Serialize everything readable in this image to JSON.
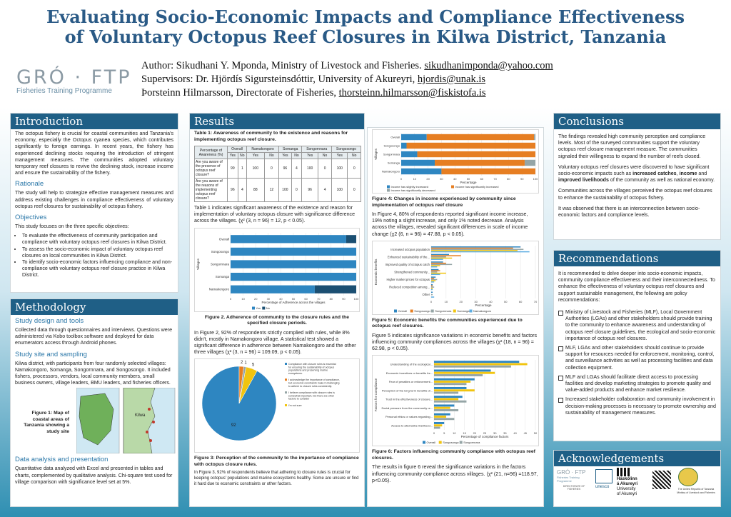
{
  "title_line1": "Evaluating Socio-Economic Impacts and Compliance Effectiveness",
  "title_line2": "of Voluntary Octopus Reef Closures in Kilwa District, Tanzania",
  "author_prefix": "Author: Sikudhani Y. Mponda, Ministry of Livestock and Fisheries. ",
  "author_email": "sikudhanimponda@yahoo.com",
  "sup1_prefix": "Supervisors: Dr. Hjördís Sigursteinsdóttir, University of Akureyri, ",
  "sup1_email": "hjordis@unak.is",
  "sup2_prefix": "Þorsteinn Hilmarsson, Directorate of Fisheries, ",
  "sup2_email": "thorsteinn.hilmarsson@fiskistofa.is",
  "logo_text": "GRÓ · FTP",
  "logo_sub": "Fisheries Training Programme",
  "intro": {
    "header": "Introduction",
    "body": "The octopus fishery is crucial for coastal communities and Tanzania's economy, especially the Octopus cyanea species, which contributes significantly to foreign earnings. In recent years, the fishery has experienced declining stocks requiring the introduction of stringent management measures. The communities adopted voluntary temporary reef closures to revive the declining stock, increase income and ensure the sustainability of the fishery.",
    "rationale_h": "Rationale",
    "rationale": "The study will help to strategize effective management measures and address existing challenges in compliance effectiveness of voluntary octopus reef closures for sustainability of octopus fishery.",
    "objectives_h": "Objectives",
    "objectives_lead": "This study focuses on the three specific objectives:",
    "objectives": [
      "To evaluate the effectiveness of community participation and compliance with voluntary octopus reef closures in Kilwa District.",
      "To assess the socio-economic impact of voluntary octopus reef closures on local communities in Kilwa District.",
      "To identify socio-economic factors influencing compliance and non-compliance with voluntary octopus reef closure practice in Kilwa District."
    ]
  },
  "method": {
    "header": "Methodology",
    "design_h": "Study design and tools",
    "design": "Collected data through questionnaires and interviews. Questions were administered via Kobo toolbox software and deployed for data enumerators access through Android phones.",
    "site_h": "Study site and sampling",
    "site": "Kilwa district, with participants from four randomly selected villages: Namakongoro, Somanga, Songornnara, and Songosongo. It included fishers, processors, vendors, local community members, small business owners, village leaders, BMU leaders, and fisheries officers.",
    "fig1_caption": "Figure 1: Map of coastal areas of Tanzania showing a study site",
    "map_label": "Kilwa",
    "analysis_h": "Data analysis and presentation",
    "analysis": "Quantitative data analyzed with Excel and presented in tables and charts, complemented by qualitative analysis. Chi-square test used for village comparison with significance level set at 5%."
  },
  "results": {
    "header": "Results",
    "table1_caption": "Table 1: Awareness of community to the existence and reasons for implementing octopus reef closure.",
    "table1_headers": [
      "Percentage of Awareness (%)",
      "Overall",
      "Namakongoro",
      "Somanga",
      "Songornnara",
      "Songosongo"
    ],
    "table1_sub": [
      "Yes",
      "No",
      "Yes",
      "No",
      "Yes",
      "No",
      "Yes",
      "No",
      "Yes",
      "No"
    ],
    "table1_rows": [
      {
        "label": "Are you aware of the presence of octopus reef closure?",
        "cells": [
          "99",
          "1",
          "100",
          "0",
          "96",
          "4",
          "100",
          "0",
          "100",
          "0"
        ]
      },
      {
        "label": "Are you aware of the reasons of implementing octopus reef closure?",
        "cells": [
          "96",
          "4",
          "88",
          "12",
          "100",
          "0",
          "96",
          "4",
          "100",
          "0"
        ]
      }
    ],
    "table1_text": "Table 1 indicates significant awareness of the existence and reason for implementation of voluntary octopus closure with significance difference across the villages. (χ² (3, n = 96) = 12, p < 0.05).",
    "fig2_caption": "Figure 2. Adherence of community to the closure rules and the specified closure periods.",
    "fig2_text": "In Figure 2, 92% of respondents strictly complied with rules, while 8% didn't, mostly in Namakongoro village. A statistical test showed a significant difference in adherence between Namakongoro and the other three villages (χ² (3, n = 96) = 109.09, p < 0.05).",
    "fig3_caption": "Figure 3: Perception of the community to the importance of compliance with octopus closure rules.",
    "fig3_text": "In Figure 3, 92% of respondents believe that adhering to closure rules is crucial for keeping octopus' populations and marine ecosystems healthy. Some are unsure or find it hard due to economic constraints or other factors.",
    "fig4_caption": "Figure 4: Changes in income experienced by community since implementation of octopus reef closure",
    "fig4_text": "In Figure 4, 80% of respondents reported significant income increase, 19% noting a slight increase, and only 1% noted decrease. Analysis across the villages, revealed significant differences in scale of income change (χ2 (6, n = 96) = 47.88, p < 0.05).",
    "fig5_caption": "Figure 5: Economic benefits the communities experienced due to octopus reef closures.",
    "fig5_text": "Figure 5 indicates significance variations in economic benefits and factors influencing community compliances across the villages (χ² (18, n = 96) = 62.98, p < 0.05).",
    "fig6_caption": "Figure 6: Factors influencing community compliance with octopus reef closures.",
    "fig6_text": "The results in figure 6 reveal the significance variations in the factors influencing community compliance across villages. (χ² (21, n=96) =118.97, p<0.05)."
  },
  "conclusions": {
    "header": "Conclusions",
    "p1": "The findings revealed high community perception and compliance levels. Most of the surveyed communities support the voluntary octopus reef closure management measure. The communities signaled their willingness to expand the number of reefs closed.",
    "p2a": "Voluntary octopus reef closures were discovered to have significant socio-economic impacts such as ",
    "p2b": "increased catches",
    "p2c": ", ",
    "p2d": "income",
    "p2e": " and ",
    "p2f": "improved livelihoods",
    "p2g": " of the community as well as national economy.",
    "p3": "Communities across the villages perceived the octopus reef closures to enhance the sustainability of octopus fishery.",
    "p4": "It was observed that there is an interconnection between socio-economic factors and compliance levels."
  },
  "recommendations": {
    "header": "Recommendations",
    "lead": "It is recommended to delve deeper into socio-economic impacts, community compliance effectiveness and their interconnectedness. To enhance the effectiveness of voluntary octopus reef closures and support sustainable management, the following are policy recommendations:",
    "items": [
      "Ministry of Livestock and Fisheries (MLF), Local Government Authorities (LGAs) and other stakeholders should provide training to the community to enhance awareness and understanding of octopus reef closure guidelines, the ecological and socio-economic importance of octopus reef closures.",
      "MLF, LGAs and other stakeholders should continue to provide support for resources needed for enforcement, monitoring, control, and surveillance activities as well as processing facilities and data collection equipment.",
      "MLF and LGAs should facilitate direct access to processing facilities and develop marketing strategies to promote quality and value-added products and enhance market resilience.",
      "Increased stakeholder collaboration and community involvement in decision-making processes is necessary to promote ownership and sustainability of management measures."
    ]
  },
  "ack": {
    "header": "Acknowledgements",
    "logo1": "GRÓ · FTP",
    "logo1_sub": "Fisheries Training Programme",
    "logo2": "unesco",
    "logo3a": "Háskólinn",
    "logo3b": "á Akureyri",
    "logo3c": "University",
    "logo3d": "of Akureyri",
    "logo4": "DIRECTORATE OF FISHERIES",
    "logo5": "The United Republic of Tanzania Ministry of Livestock and Fisheries"
  },
  "chart_data": [
    {
      "type": "bar",
      "name": "fig2",
      "orientation": "horizontal",
      "stacked": true,
      "categories": [
        "Overall",
        "Songosongo",
        "Songornnara",
        "Somanga",
        "Namakongoro"
      ],
      "series": [
        {
          "name": "Yes",
          "values": [
            92,
            100,
            100,
            100,
            67
          ],
          "color": "#2e86c1"
        },
        {
          "name": "No",
          "values": [
            8,
            0,
            0,
            0,
            33
          ],
          "color": "#1b4f72"
        }
      ],
      "xlabel": "Percentage of Adherence across the villages",
      "ylabel": "Villages",
      "xlim": [
        0,
        100
      ],
      "xticks": [
        0,
        10,
        20,
        30,
        40,
        50,
        60,
        70,
        80,
        90,
        100
      ],
      "legend": "bottom"
    },
    {
      "type": "pie",
      "name": "fig3",
      "slices": [
        {
          "label": "Compliance with closure rules is essential for ensuring the sustainability of octopus populations and preserving marine ecosystems.",
          "value": 92,
          "color": "#2e86c1"
        },
        {
          "label": "I acknowledge the importance of compliance, but economic constraints make it challenging to adhere to closure rules consistently.",
          "value": 2,
          "color": "#e67e22"
        },
        {
          "label": "I believe compliance with closure rules is somewhat important, but there are other factors to consider",
          "value": 1,
          "color": "#95a5a6"
        },
        {
          "label": "I'm not sure",
          "value": 5,
          "color": "#f1c40f"
        }
      ],
      "data_labels": [
        "92",
        "2",
        "1",
        "5"
      ],
      "legend": "right"
    },
    {
      "type": "bar",
      "name": "fig4",
      "orientation": "horizontal",
      "stacked": true,
      "categories": [
        "Overall",
        "Songosongo",
        "Songornnara",
        "Somanga",
        "Namakongoro"
      ],
      "series": [
        {
          "name": "Income has slightly increased",
          "values": [
            19,
            4,
            12,
            25,
            30
          ],
          "color": "#2e86c1"
        },
        {
          "name": "Income has significantly increased",
          "values": [
            80,
            96,
            88,
            67,
            70
          ],
          "color": "#e67e22"
        },
        {
          "name": "Income has significantly decreased",
          "values": [
            1,
            0,
            0,
            8,
            0
          ],
          "color": "#95a5a6"
        }
      ],
      "xlabel": "Percentage",
      "ylabel": "Villages",
      "xlim": [
        0,
        100
      ],
      "xticks": [
        0,
        10,
        20,
        30,
        40,
        50,
        60,
        70,
        80,
        90,
        100
      ],
      "legend": "bottom"
    },
    {
      "type": "bar",
      "name": "fig5",
      "orientation": "horizontal",
      "categories": [
        "Increased octopus population",
        "Enhanced sustainability of the...",
        "Improved quality of octopus catch",
        "Strengthened community...",
        "Higher market prices for octopus",
        "Reduced competition among...",
        "Other"
      ],
      "series": [
        {
          "name": "Overall",
          "values": [
            60,
            12,
            8,
            5,
            3,
            1,
            1
          ],
          "color": "#2e86c1"
        },
        {
          "name": "Songosongo",
          "values": [
            55,
            20,
            10,
            6,
            2,
            1,
            0
          ],
          "color": "#e67e22"
        },
        {
          "name": "Songornnara",
          "values": [
            62,
            10,
            14,
            4,
            4,
            2,
            1
          ],
          "color": "#95a5a6"
        },
        {
          "name": "Somanga",
          "values": [
            58,
            14,
            6,
            10,
            3,
            1,
            0
          ],
          "color": "#f1c40f"
        },
        {
          "name": "Namakongoro",
          "values": [
            66,
            8,
            4,
            6,
            2,
            1,
            2
          ],
          "color": "#5dade2"
        }
      ],
      "xlabel": "Percentage",
      "ylabel": "Economic benefits",
      "xlim": [
        0,
        70
      ],
      "xticks": [
        0,
        10,
        20,
        30,
        40,
        50,
        60,
        70
      ],
      "legend": "bottom"
    },
    {
      "type": "bar",
      "name": "fig6",
      "orientation": "horizontal",
      "categories": [
        "Understanding of the ecological...",
        "Economic incentives or benefits for...",
        "Fear of penalties or enforcement...",
        "Perception of the long-term benefits of...",
        "Trust in the effectiveness of closure...",
        "Social pressure from the community or...",
        "Personal ethics or values regarding...",
        "Access to alternative livelihood..."
      ],
      "series": [
        {
          "name": "Overall",
          "values": [
            42,
            28,
            20,
            16,
            14,
            10,
            8,
            5
          ],
          "color": "#2e86c1"
        },
        {
          "name": "Songosongo",
          "values": [
            46,
            30,
            18,
            20,
            12,
            8,
            6,
            4
          ],
          "color": "#f1c40f"
        },
        {
          "name": "Songornnara",
          "values": [
            38,
            24,
            16,
            12,
            16,
            12,
            10,
            3
          ],
          "color": "#95a5a6"
        }
      ],
      "xlabel": "Percentage of compliance factors",
      "ylabel": "Factors for Compliance",
      "xlim": [
        0,
        50
      ],
      "xticks": [
        0,
        5,
        10,
        15,
        20,
        25,
        30,
        35,
        40,
        45,
        50
      ],
      "legend": "bottom"
    }
  ]
}
